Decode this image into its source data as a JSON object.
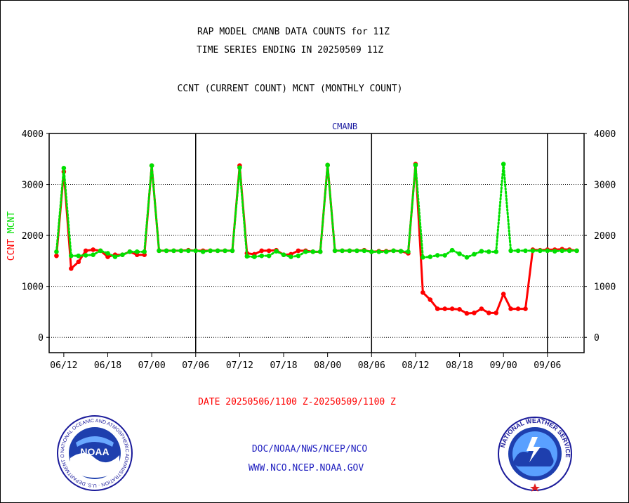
{
  "header": {
    "title_line1": "RAP MODEL CMANB DATA COUNTS for 11Z",
    "title_line2": "TIME SERIES ENDING IN 20250509 11Z",
    "subtitle": "CCNT (CURRENT COUNT) MCNT (MONTHLY COUNT)"
  },
  "footer": {
    "date_range": "DATE 20250506/1100 Z-20250509/1100 Z",
    "org_line": "DOC/NOAA/NWS/NCEP/NCO",
    "url_line": "WWW.NCO.NCEP.NOAA.GOV"
  },
  "logos": {
    "noaa_label": "NOAA",
    "noaa_ring_text": "NATIONAL OCEANIC AND ATMOSPHERIC ADMINISTRATION · U.S. DEPARTMENT OF COMMERCE ·",
    "nws_ring_text": "NATIONAL WEATHER SERVICE"
  },
  "colors": {
    "ccnt": "#ff0000",
    "mcnt": "#00e000",
    "footer_blue": "#2020c0",
    "date_red": "#ff0000",
    "plot_title": "#1a1aa0"
  },
  "chart_data": {
    "type": "line",
    "title": "CMANB",
    "ylabel_left_parts": [
      "CCNT",
      "MCNT"
    ],
    "ylim": [
      -300,
      4000
    ],
    "yticks": [
      0,
      1000,
      2000,
      3000,
      4000
    ],
    "ytick_labels": [
      "0",
      "1000",
      "2000",
      "3000",
      "4000"
    ],
    "xlim": [
      -1,
      72
    ],
    "xtick_positions": [
      1,
      7,
      13,
      19,
      25,
      31,
      37,
      43,
      49,
      55,
      61,
      67
    ],
    "xtick_labels": [
      "06/12",
      "06/18",
      "07/00",
      "07/06",
      "07/12",
      "07/18",
      "08/00",
      "08/06",
      "08/12",
      "08/18",
      "09/00",
      "09/06"
    ],
    "day_boundaries": [
      19,
      43,
      67
    ],
    "grid_y": true,
    "series": [
      {
        "name": "CCNT",
        "style": "solid",
        "values": [
          1600,
          3250,
          1350,
          1480,
          1700,
          1720,
          1700,
          1580,
          1620,
          1620,
          1680,
          1620,
          1620,
          3370,
          1700,
          1700,
          1700,
          1700,
          1710,
          1700,
          1700,
          1700,
          1700,
          1700,
          1700,
          3370,
          1650,
          1630,
          1700,
          1700,
          1710,
          1620,
          1630,
          1700,
          1700,
          1680,
          1680,
          3380,
          1700,
          1700,
          1700,
          1700,
          1710,
          1680,
          1690,
          1690,
          1700,
          1690,
          1650,
          3400,
          880,
          740,
          560,
          560,
          560,
          550,
          470,
          480,
          560,
          480,
          480,
          850,
          560,
          560,
          560,
          1720,
          1710,
          1720,
          1720,
          1730,
          1720,
          1700
        ]
      },
      {
        "name": "MCNT",
        "style": "dotted",
        "values": [
          1680,
          3320,
          1600,
          1600,
          1610,
          1620,
          1700,
          1650,
          1580,
          1620,
          1680,
          1680,
          1680,
          3370,
          1700,
          1700,
          1700,
          1700,
          1700,
          1700,
          1680,
          1700,
          1700,
          1700,
          1700,
          3330,
          1590,
          1580,
          1600,
          1600,
          1690,
          1620,
          1580,
          1600,
          1680,
          1680,
          1680,
          3380,
          1700,
          1700,
          1700,
          1700,
          1700,
          1680,
          1680,
          1680,
          1700,
          1690,
          1680,
          3380,
          1570,
          1580,
          1610,
          1610,
          1710,
          1640,
          1570,
          1630,
          1690,
          1680,
          1680,
          3400,
          1700,
          1700,
          1700,
          1700,
          1700,
          1700,
          1690,
          1700,
          1700,
          1700
        ]
      }
    ]
  }
}
